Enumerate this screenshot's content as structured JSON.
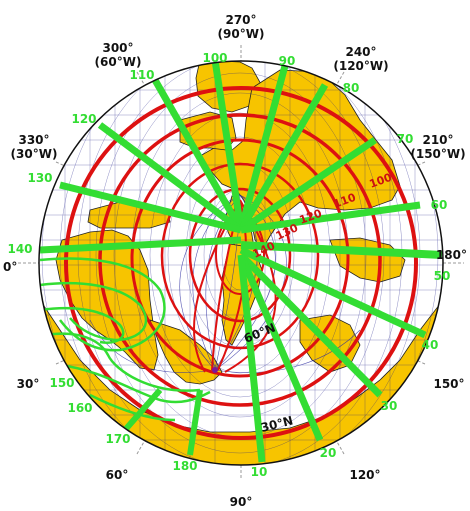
{
  "colors": {
    "land": "#f7c400",
    "land_edge": "#222222",
    "ocean": "#ffffff",
    "graticule": "#1a1a8a",
    "red_contour": "#dd1111",
    "green_contour": "#33dd33",
    "border": "#111111",
    "frame_tick": "#999999"
  },
  "icons": {
    "coastline": "coastline-shape",
    "graticule": "grid-mesh"
  },
  "longitude_labels": [
    {
      "id": "lon-270",
      "lines": [
        "270°",
        "(90°W)"
      ]
    },
    {
      "id": "lon-300",
      "lines": [
        "300°",
        "(60°W)"
      ]
    },
    {
      "id": "lon-240",
      "lines": [
        "240°",
        "(120°W)"
      ]
    },
    {
      "id": "lon-330",
      "lines": [
        "330°",
        "(30°W)"
      ]
    },
    {
      "id": "lon-210",
      "lines": [
        "210°",
        "(150°W)"
      ]
    },
    {
      "id": "lon-0",
      "lines": [
        "0°"
      ]
    },
    {
      "id": "lon-180",
      "lines": [
        "180°"
      ]
    },
    {
      "id": "lon-30",
      "lines": [
        "30°"
      ]
    },
    {
      "id": "lon-150",
      "lines": [
        "150°"
      ]
    },
    {
      "id": "lon-60",
      "lines": [
        "60°"
      ]
    },
    {
      "id": "lon-120",
      "lines": [
        "120°"
      ]
    },
    {
      "id": "lon-90",
      "lines": [
        "90°"
      ]
    }
  ],
  "latitude_labels": [
    "60°N",
    "30°N"
  ],
  "green_labels": [
    "100",
    "90",
    "110",
    "80",
    "120",
    "70",
    "130",
    "60",
    "140",
    "50",
    "40",
    "150",
    "30",
    "160",
    "170",
    "20",
    "180",
    "10"
  ],
  "red_labels": [
    "100",
    "110",
    "120",
    "130",
    "140"
  ]
}
